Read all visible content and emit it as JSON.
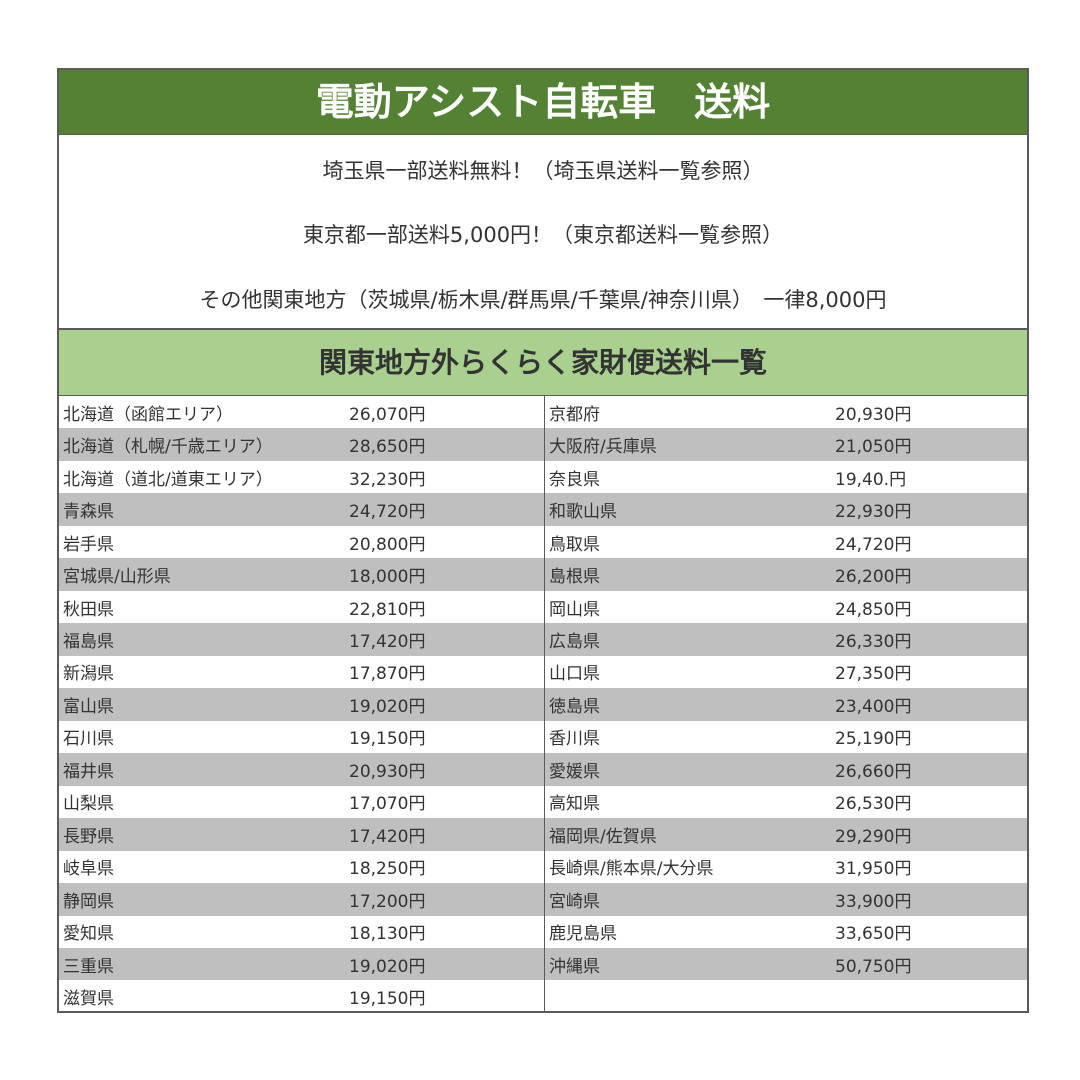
{
  "title": "電動アシスト自転車　送料",
  "notes": [
    "埼玉県一部送料無料！（埼玉県送料一覧参照）",
    "東京都一部送料5,000円！（東京都送料一覧参照）",
    "その他関東地方（茨城県/栃木県/群馬県/千葉県/神奈川県）　一律8,000円"
  ],
  "subtitle": "関東地方外らくらく家財便送料一覧",
  "colors": {
    "title_bg": "#548235",
    "subtitle_bg": "#a9d08e",
    "stripe": "#bfbfbf"
  },
  "left": [
    {
      "name": "北海道（函館エリア）",
      "price": "26,070円"
    },
    {
      "name": "北海道（札幌/千歳エリア）",
      "price": "28,650円"
    },
    {
      "name": "北海道（道北/道東エリア）",
      "price": "32,230円"
    },
    {
      "name": "青森県",
      "price": "24,720円"
    },
    {
      "name": "岩手県",
      "price": "20,800円"
    },
    {
      "name": "宮城県/山形県",
      "price": "18,000円"
    },
    {
      "name": "秋田県",
      "price": "22,810円"
    },
    {
      "name": "福島県",
      "price": "17,420円"
    },
    {
      "name": "新潟県",
      "price": "17,870円"
    },
    {
      "name": "富山県",
      "price": "19,020円"
    },
    {
      "name": "石川県",
      "price": "19,150円"
    },
    {
      "name": "福井県",
      "price": "20,930円"
    },
    {
      "name": "山梨県",
      "price": "17,070円"
    },
    {
      "name": "長野県",
      "price": "17,420円"
    },
    {
      "name": "岐阜県",
      "price": "18,250円"
    },
    {
      "name": "静岡県",
      "price": "17,200円"
    },
    {
      "name": "愛知県",
      "price": "18,130円"
    },
    {
      "name": "三重県",
      "price": "19,020円"
    },
    {
      "name": "滋賀県",
      "price": "19,150円"
    }
  ],
  "right": [
    {
      "name": "京都府",
      "price": "20,930円"
    },
    {
      "name": "大阪府/兵庫県",
      "price": "21,050円"
    },
    {
      "name": "奈良県",
      "price": "19,40.円"
    },
    {
      "name": "和歌山県",
      "price": "22,930円"
    },
    {
      "name": "鳥取県",
      "price": "24,720円"
    },
    {
      "name": "島根県",
      "price": "26,200円"
    },
    {
      "name": "岡山県",
      "price": "24,850円"
    },
    {
      "name": "広島県",
      "price": "26,330円"
    },
    {
      "name": "山口県",
      "price": "27,350円"
    },
    {
      "name": "徳島県",
      "price": "23,400円"
    },
    {
      "name": "香川県",
      "price": "25,190円"
    },
    {
      "name": "愛媛県",
      "price": "26,660円"
    },
    {
      "name": "高知県",
      "price": "26,530円"
    },
    {
      "name": "福岡県/佐賀県",
      "price": "29,290円"
    },
    {
      "name": "長崎県/熊本県/大分県",
      "price": "31,950円"
    },
    {
      "name": "宮崎県",
      "price": "33,900円"
    },
    {
      "name": "鹿児島県",
      "price": "33,650円"
    },
    {
      "name": "沖縄県",
      "price": "50,750円"
    },
    {
      "name": "",
      "price": ""
    }
  ]
}
